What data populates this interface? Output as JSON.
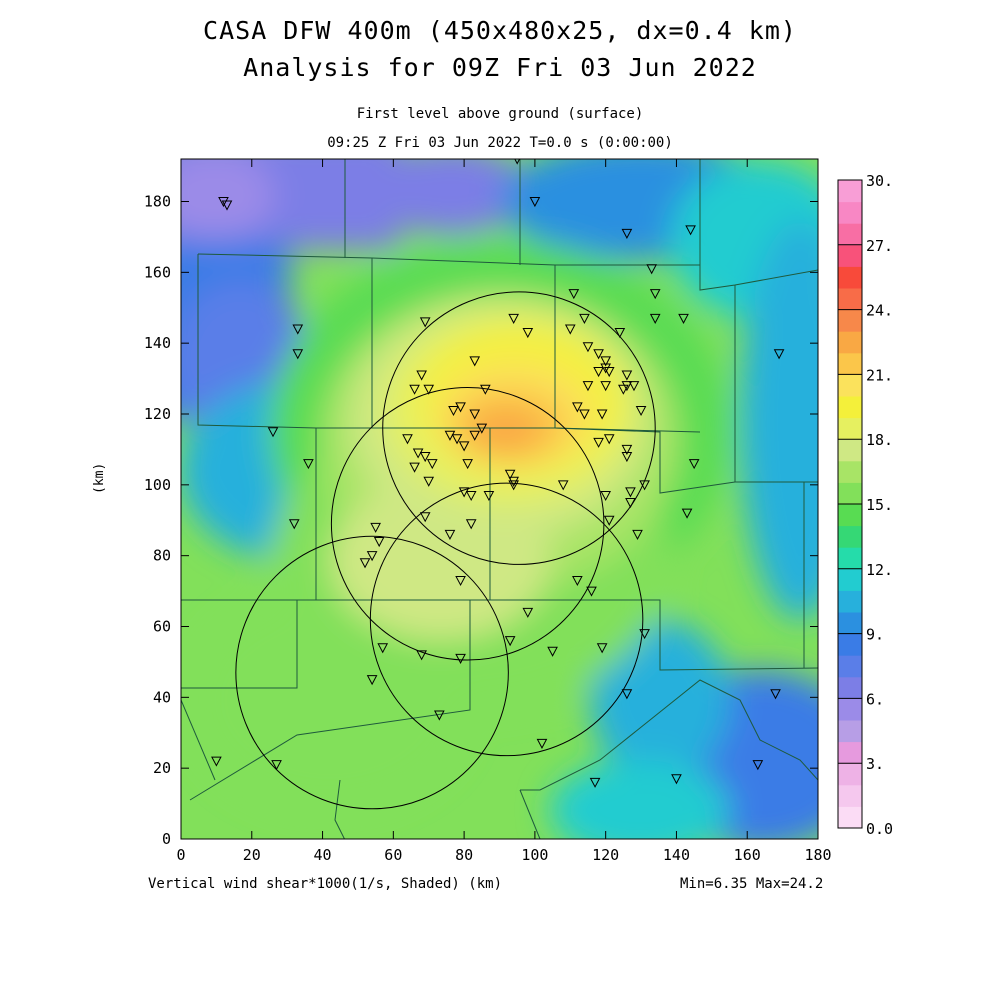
{
  "title": {
    "line1": "CASA DFW 400m (450x480x25, dx=0.4 km)",
    "line2": "Analysis for 09Z Fri 03 Jun 2022"
  },
  "subtitle": {
    "line1": "First level above ground (surface)",
    "line2": "09:25 Z Fri 03 Jun 2022   T=0.0 s (0:00:00)"
  },
  "footer": {
    "left": "Vertical wind shear*1000(1/s, Shaded)  (km)",
    "right": "Min=6.35 Max=24.2"
  },
  "chart_data": {
    "type": "heatmap",
    "variable": "Vertical wind shear*1000(1/s, Shaded)",
    "xlabel": "(km)",
    "ylabel": "(km)",
    "xlim": [
      0,
      180
    ],
    "ylim": [
      0,
      192
    ],
    "xticks": [
      "0",
      "20",
      "40",
      "60",
      "80",
      "100",
      "120",
      "140",
      "160",
      "180"
    ],
    "yticks": [
      "0",
      "20",
      "40",
      "60",
      "80",
      "100",
      "120",
      "140",
      "160",
      "180"
    ],
    "min": 6.35,
    "max": 24.2,
    "colorbar": {
      "min": 0,
      "max": 30,
      "step": 1.5,
      "labels": [
        "0.0",
        "3.",
        "6.",
        "9.",
        "12.",
        "15.",
        "18.",
        "21.",
        "24.",
        "27.",
        "30."
      ],
      "colors": [
        "#fbdcf5",
        "#f5c8ee",
        "#eeb2e6",
        "#e69ade",
        "#b79ee6",
        "#9b8be8",
        "#7c7ee6",
        "#5a7ee8",
        "#3a7ce6",
        "#2b90e0",
        "#27b0dc",
        "#22ccd0",
        "#25dcaa",
        "#35d875",
        "#58dc52",
        "#82e05a",
        "#a8e466",
        "#cfe884",
        "#e6f060",
        "#f4f03a",
        "#fbe25c",
        "#fbc64a",
        "#f9a844",
        "#f7884a",
        "#f86c48",
        "#f84a3a",
        "#f8527a",
        "#f86ea4",
        "#f887c4",
        "#f89ed6"
      ]
    },
    "radar_circles_km": [
      {
        "cx": 95.5,
        "cy": 116,
        "r": 38.5
      },
      {
        "cx": 81,
        "cy": 89,
        "r": 38.5
      },
      {
        "cx": 92,
        "cy": 62,
        "r": 38.5
      },
      {
        "cx": 54,
        "cy": 47,
        "r": 38.5
      }
    ],
    "stations_km": [
      [
        12,
        180
      ],
      [
        13,
        179
      ],
      [
        33,
        144
      ],
      [
        33,
        137
      ],
      [
        26,
        115
      ],
      [
        36,
        106
      ],
      [
        32,
        89
      ],
      [
        10,
        22
      ],
      [
        27,
        21
      ],
      [
        69,
        146
      ],
      [
        83,
        135
      ],
      [
        94,
        147
      ],
      [
        98,
        143
      ],
      [
        111,
        154
      ],
      [
        110,
        144
      ],
      [
        114,
        147
      ],
      [
        115,
        139
      ],
      [
        118,
        137
      ],
      [
        124,
        143
      ],
      [
        120,
        135
      ],
      [
        118,
        132
      ],
      [
        120,
        133
      ],
      [
        121,
        132
      ],
      [
        115,
        128
      ],
      [
        120,
        128
      ],
      [
        125,
        127
      ],
      [
        126,
        131
      ],
      [
        126,
        128
      ],
      [
        128,
        128
      ],
      [
        130,
        121
      ],
      [
        112,
        122
      ],
      [
        114,
        120
      ],
      [
        119,
        120
      ],
      [
        133,
        161
      ],
      [
        134,
        154
      ],
      [
        134,
        147
      ],
      [
        142,
        147
      ],
      [
        126,
        171
      ],
      [
        144,
        172
      ],
      [
        169,
        137
      ],
      [
        145,
        106
      ],
      [
        95,
        192
      ],
      [
        100,
        180
      ],
      [
        68,
        131
      ],
      [
        66,
        127
      ],
      [
        70,
        127
      ],
      [
        86,
        127
      ],
      [
        77,
        121
      ],
      [
        83,
        120
      ],
      [
        79,
        122
      ],
      [
        83,
        114
      ],
      [
        76,
        114
      ],
      [
        78,
        113
      ],
      [
        64,
        113
      ],
      [
        80,
        111
      ],
      [
        81,
        106
      ],
      [
        85,
        116
      ],
      [
        67,
        109
      ],
      [
        69,
        108
      ],
      [
        71,
        106
      ],
      [
        66,
        105
      ],
      [
        70,
        101
      ],
      [
        80,
        98
      ],
      [
        82,
        97
      ],
      [
        87,
        97
      ],
      [
        93,
        103
      ],
      [
        94,
        101
      ],
      [
        94,
        100
      ],
      [
        108,
        100
      ],
      [
        118,
        112
      ],
      [
        121,
        113
      ],
      [
        126,
        110
      ],
      [
        126,
        108
      ],
      [
        120,
        97
      ],
      [
        127,
        98
      ],
      [
        131,
        100
      ],
      [
        127,
        95
      ],
      [
        121,
        90
      ],
      [
        129,
        86
      ],
      [
        143,
        92
      ],
      [
        69,
        91
      ],
      [
        76,
        86
      ],
      [
        82,
        89
      ],
      [
        55,
        88
      ],
      [
        56,
        84
      ],
      [
        54,
        80
      ],
      [
        52,
        78
      ],
      [
        79,
        73
      ],
      [
        112,
        73
      ],
      [
        116,
        70
      ],
      [
        98,
        64
      ],
      [
        131,
        58
      ],
      [
        93,
        56
      ],
      [
        119,
        54
      ],
      [
        105,
        53
      ],
      [
        57,
        54
      ],
      [
        68,
        52
      ],
      [
        79,
        51
      ],
      [
        54,
        45
      ],
      [
        126,
        41
      ],
      [
        168,
        41
      ],
      [
        73,
        35
      ],
      [
        102,
        27
      ],
      [
        117,
        16
      ],
      [
        140,
        17
      ],
      [
        163,
        21
      ]
    ]
  }
}
